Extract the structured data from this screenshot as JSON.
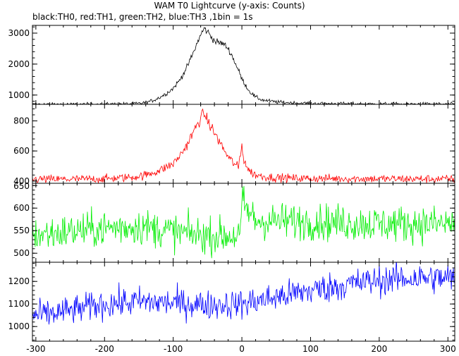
{
  "chart_data": {
    "type": "line",
    "title": "WAM T0 Lightcurve (y-axis: Counts)",
    "subtitle": "black:TH0, red:TH1, green:TH2, blue:TH3 ,1bin = 1s",
    "xlim": [
      -305,
      310
    ],
    "x_ticks": [
      -300,
      -200,
      -100,
      0,
      100,
      200,
      300
    ],
    "grid": false,
    "panels": [
      {
        "series_name": "TH0",
        "color": "#000000",
        "ylim": [
          700,
          3250
        ],
        "y_ticks": [
          1000,
          2000,
          3000
        ],
        "noise": 28,
        "points": [
          [
            -305,
            700
          ],
          [
            -250,
            700
          ],
          [
            -200,
            705
          ],
          [
            -170,
            712
          ],
          [
            -150,
            725
          ],
          [
            -140,
            760
          ],
          [
            -130,
            820
          ],
          [
            -120,
            920
          ],
          [
            -110,
            1050
          ],
          [
            -100,
            1220
          ],
          [
            -90,
            1500
          ],
          [
            -80,
            1900
          ],
          [
            -70,
            2400
          ],
          [
            -62,
            2850
          ],
          [
            -55,
            3150
          ],
          [
            -50,
            3050
          ],
          [
            -45,
            2900
          ],
          [
            -40,
            2750
          ],
          [
            -35,
            2700
          ],
          [
            -30,
            2680
          ],
          [
            -25,
            2620
          ],
          [
            -20,
            2500
          ],
          [
            -15,
            2300
          ],
          [
            -10,
            2050
          ],
          [
            -5,
            1800
          ],
          [
            0,
            1520
          ],
          [
            10,
            1150
          ],
          [
            20,
            930
          ],
          [
            30,
            840
          ],
          [
            50,
            775
          ],
          [
            80,
            740
          ],
          [
            120,
            722
          ],
          [
            200,
            710
          ],
          [
            310,
            705
          ]
        ]
      },
      {
        "series_name": "TH1",
        "color": "#ff0000",
        "ylim": [
          385,
          910
        ],
        "y_ticks": [
          400,
          600,
          800
        ],
        "noise": 14,
        "points": [
          [
            -305,
            412
          ],
          [
            -250,
            412
          ],
          [
            -200,
            415
          ],
          [
            -160,
            425
          ],
          [
            -140,
            440
          ],
          [
            -120,
            470
          ],
          [
            -100,
            515
          ],
          [
            -90,
            570
          ],
          [
            -80,
            640
          ],
          [
            -70,
            730
          ],
          [
            -60,
            820
          ],
          [
            -55,
            850
          ],
          [
            -50,
            800
          ],
          [
            -45,
            760
          ],
          [
            -40,
            720
          ],
          [
            -30,
            640
          ],
          [
            -20,
            560
          ],
          [
            -10,
            510
          ],
          [
            -5,
            490
          ],
          [
            -2,
            580
          ],
          [
            0,
            640
          ],
          [
            3,
            540
          ],
          [
            10,
            470
          ],
          [
            20,
            440
          ],
          [
            40,
            425
          ],
          [
            80,
            418
          ],
          [
            200,
            415
          ],
          [
            310,
            413
          ]
        ]
      },
      {
        "series_name": "TH2",
        "color": "#00ee00",
        "ylim": [
          480,
          655
        ],
        "y_ticks": [
          500,
          550,
          600,
          650
        ],
        "noise": 20,
        "points": [
          [
            -305,
            540
          ],
          [
            -200,
            555
          ],
          [
            -150,
            560
          ],
          [
            -100,
            548
          ],
          [
            -60,
            540
          ],
          [
            -20,
            538
          ],
          [
            -2,
            540
          ],
          [
            0,
            615
          ],
          [
            5,
            600
          ],
          [
            20,
            572
          ],
          [
            100,
            570
          ],
          [
            200,
            565
          ],
          [
            310,
            565
          ]
        ]
      },
      {
        "series_name": "TH3",
        "color": "#0000ff",
        "ylim": [
          935,
          1285
        ],
        "y_ticks": [
          1000,
          1100,
          1200
        ],
        "noise": 32,
        "points": [
          [
            -305,
            1045
          ],
          [
            -250,
            1070
          ],
          [
            -200,
            1100
          ],
          [
            -150,
            1110
          ],
          [
            -100,
            1105
          ],
          [
            -50,
            1095
          ],
          [
            0,
            1100
          ],
          [
            50,
            1130
          ],
          [
            100,
            1160
          ],
          [
            150,
            1185
          ],
          [
            200,
            1205
          ],
          [
            250,
            1215
          ],
          [
            310,
            1215
          ]
        ]
      }
    ]
  }
}
